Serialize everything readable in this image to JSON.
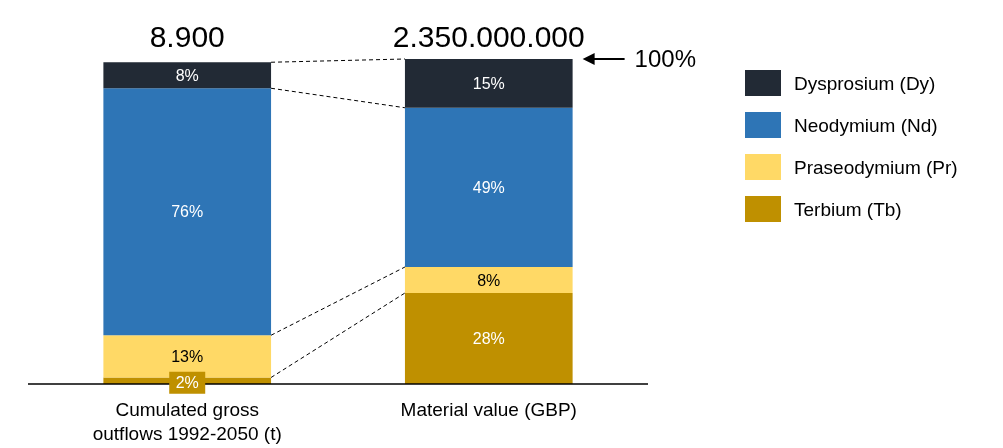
{
  "chart_data": {
    "type": "bar",
    "stacked": true,
    "categories": [
      "Cumulated gross outflows 1992-2050 (t)",
      "Material value (GBP)"
    ],
    "series": [
      {
        "name": "Terbium (Tb)",
        "color": "#bf9000",
        "values": [
          2,
          28
        ],
        "value_labels": [
          "2%",
          "28%"
        ]
      },
      {
        "name": "Praseodymium (Pr)",
        "color": "#ffd966",
        "values": [
          13,
          8
        ],
        "value_labels": [
          "13%",
          "8%"
        ]
      },
      {
        "name": "Neodymium (Nd)",
        "color": "#2e75b6",
        "values": [
          76,
          49
        ],
        "value_labels": [
          "76%",
          "49%"
        ]
      },
      {
        "name": "Dysprosium (Dy)",
        "color": "#222a35",
        "values": [
          8,
          15
        ],
        "value_labels": [
          "8%",
          "15%"
        ]
      }
    ],
    "ylim": [
      0,
      100
    ],
    "tick_labels": "x",
    "annotations": [
      "8.900",
      "2.350.000.000",
      "100%"
    ],
    "legend": "right"
  }
}
